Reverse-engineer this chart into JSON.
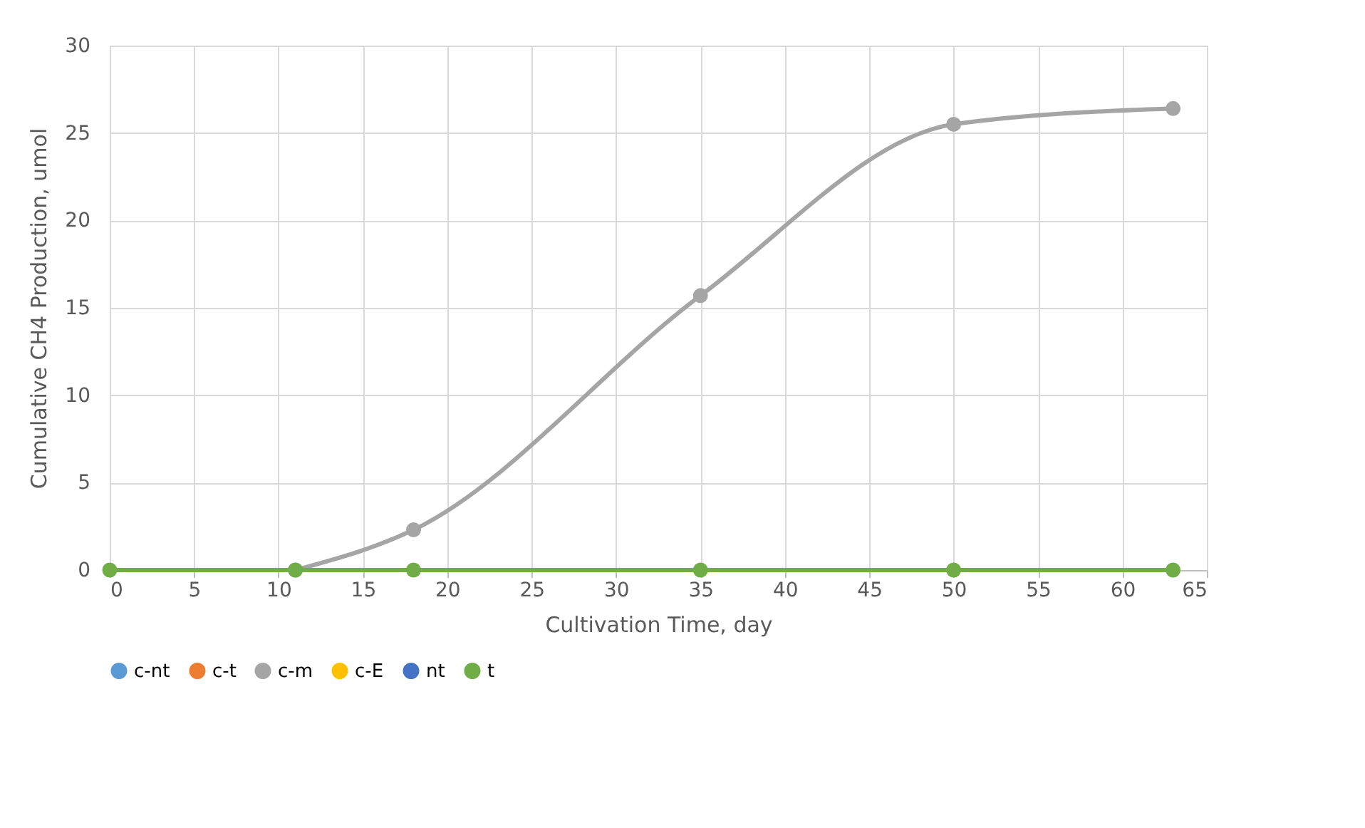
{
  "chart_data": {
    "type": "line",
    "xlabel": "Cultivation Time, day",
    "ylabel": "Cumulative CH4 Production, umol",
    "x": [
      0,
      11,
      18,
      35,
      50,
      63
    ],
    "series": [
      {
        "name": "c-nt",
        "color": "#5b9bd5",
        "values": [
          null,
          null,
          null,
          null,
          null,
          null
        ]
      },
      {
        "name": "c-t",
        "color": "#ed7d31",
        "values": [
          null,
          null,
          null,
          null,
          null,
          null
        ]
      },
      {
        "name": "c-m",
        "color": "#a5a5a5",
        "values": [
          null,
          0,
          2.3,
          15.7,
          25.5,
          26.4
        ]
      },
      {
        "name": "c-E",
        "color": "#ffc000",
        "values": [
          null,
          null,
          null,
          null,
          null,
          null
        ]
      },
      {
        "name": "nt",
        "color": "#4472c4",
        "values": [
          null,
          null,
          null,
          null,
          null,
          null
        ]
      },
      {
        "name": "t",
        "color": "#70ad47",
        "values": [
          0,
          0,
          0,
          0,
          0,
          0
        ]
      }
    ],
    "xlim": [
      0,
      65
    ],
    "xticks": [
      0,
      5,
      10,
      15,
      20,
      25,
      30,
      35,
      40,
      45,
      50,
      55,
      60,
      65
    ],
    "ylim": [
      0,
      30
    ],
    "yticks": [
      0,
      5,
      10,
      15,
      20,
      25,
      30
    ],
    "grid": true,
    "legend": "bottom",
    "marker": "circle",
    "line_style": "solid"
  }
}
